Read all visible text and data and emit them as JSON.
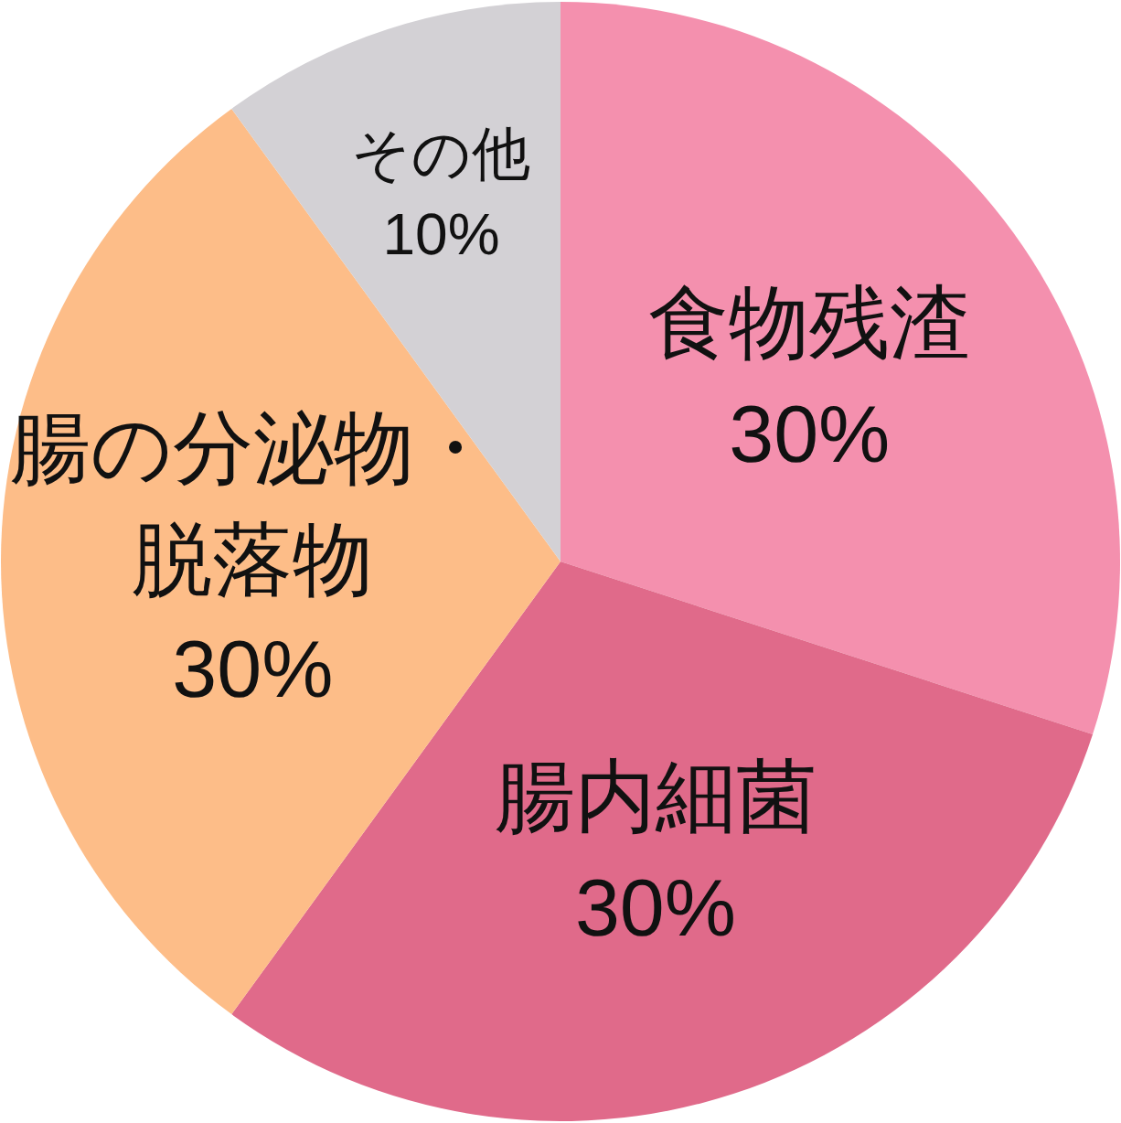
{
  "chart_data": {
    "type": "pie",
    "categories": [
      "食物残渣",
      "腸内細菌",
      "腸の分泌物・脱落物",
      "その他"
    ],
    "values": [
      30,
      30,
      30,
      10
    ],
    "colors": [
      "#f490ae",
      "#e06a8a",
      "#fdbd88",
      "#d3d1d5"
    ],
    "value_labels": [
      "30%",
      "30%",
      "30%",
      "10%"
    ]
  }
}
